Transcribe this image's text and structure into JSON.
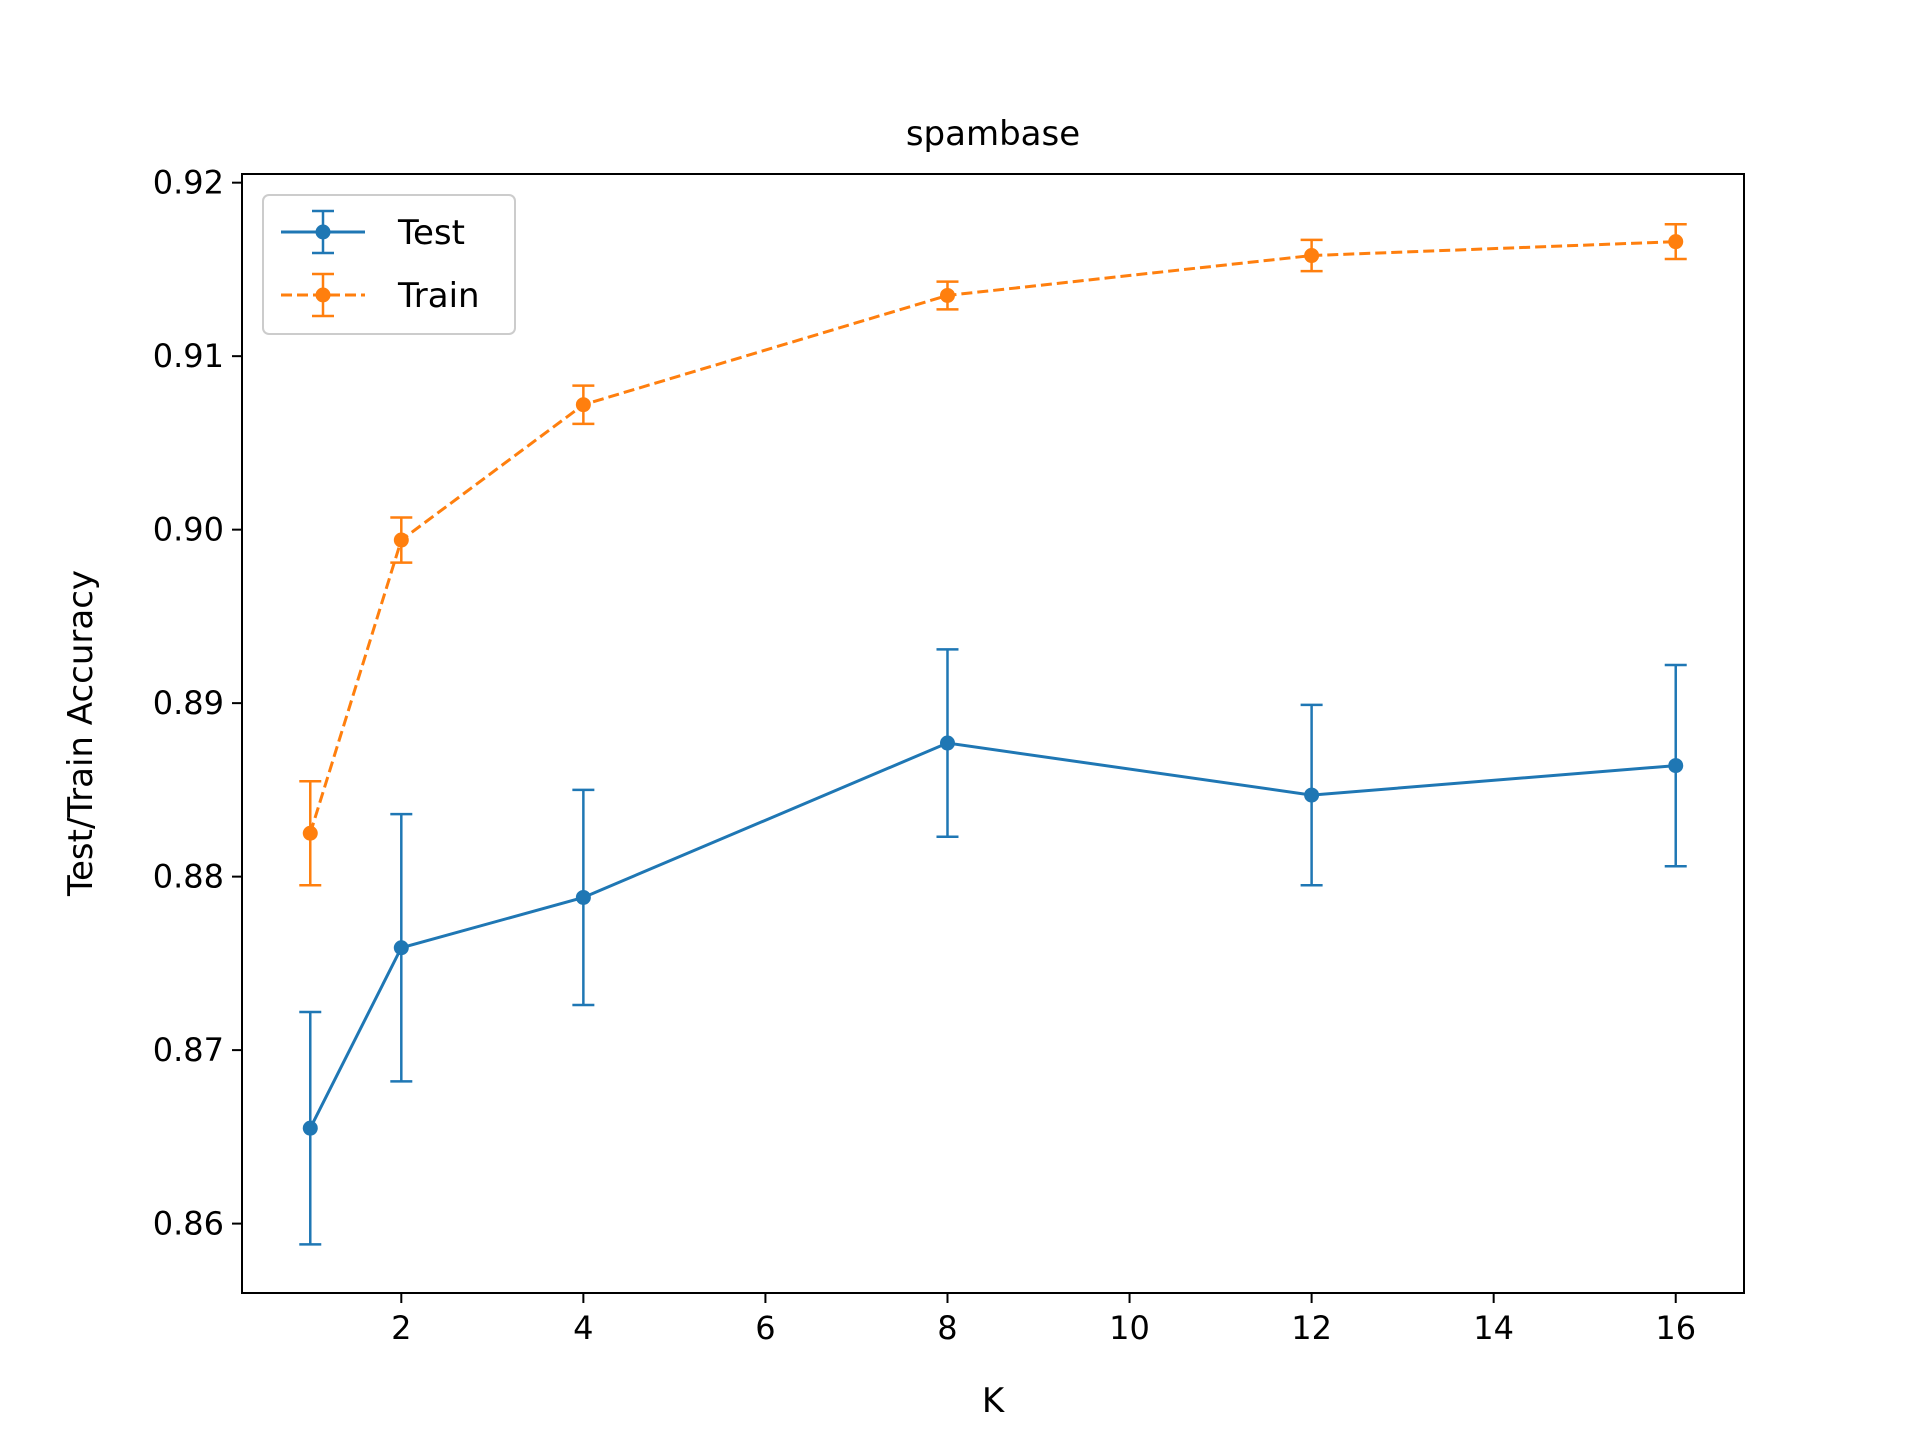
{
  "chart_data": {
    "type": "line",
    "title": "spambase",
    "xlabel": "K",
    "ylabel": "Test/Train Accuracy",
    "x": [
      1,
      2,
      4,
      8,
      12,
      16
    ],
    "xlim": [
      0.25,
      16.75
    ],
    "ylim": [
      0.856,
      0.9205
    ],
    "xticks": [
      2,
      4,
      6,
      8,
      10,
      12,
      14,
      16
    ],
    "yticks": [
      0.86,
      0.87,
      0.88,
      0.89,
      0.9,
      0.91,
      0.92
    ],
    "ytick_labels": [
      "0.86",
      "0.87",
      "0.88",
      "0.89",
      "0.90",
      "0.91",
      "0.92"
    ],
    "grid": false,
    "legend_position": "top-left",
    "series": [
      {
        "name": "Test",
        "color": "#1f77b4",
        "linestyle": "solid",
        "values": [
          0.8655,
          0.8759,
          0.8788,
          0.8877,
          0.8847,
          0.8864
        ],
        "error": [
          0.0067,
          0.0077,
          0.0062,
          0.0054,
          0.0052,
          0.0058
        ]
      },
      {
        "name": "Train",
        "color": "#ff7f0e",
        "linestyle": "dashed",
        "values": [
          0.8825,
          0.8994,
          0.9072,
          0.9135,
          0.9158,
          0.9166
        ],
        "error": [
          0.003,
          0.0013,
          0.0011,
          0.0008,
          0.0009,
          0.001
        ]
      }
    ]
  }
}
